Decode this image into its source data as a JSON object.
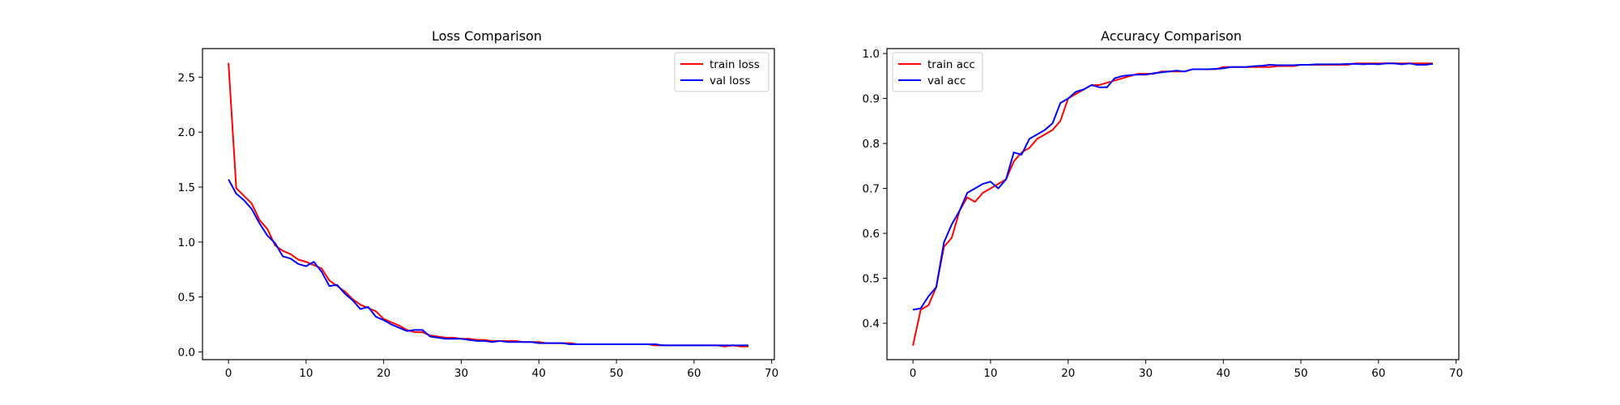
{
  "chart_data": [
    {
      "type": "line",
      "title": "Loss Comparison",
      "xlabel": "",
      "ylabel": "",
      "xlim": [
        -3.35,
        70.35
      ],
      "ylim": [
        -0.07,
        2.76
      ],
      "xticks": [
        0,
        10,
        20,
        30,
        40,
        50,
        60,
        70
      ],
      "yticks": [
        0.0,
        0.5,
        1.0,
        1.5,
        2.0,
        2.5
      ],
      "xtick_labels": [
        "0",
        "10",
        "20",
        "30",
        "40",
        "50",
        "60",
        "70"
      ],
      "ytick_labels": [
        "0.0",
        "0.5",
        "1.0",
        "1.5",
        "2.0",
        "2.5"
      ],
      "legend_position": "upper right",
      "grid": false,
      "x": [
        0,
        1,
        2,
        3,
        4,
        5,
        6,
        7,
        8,
        9,
        10,
        11,
        12,
        13,
        14,
        15,
        16,
        17,
        18,
        19,
        20,
        21,
        22,
        23,
        24,
        25,
        26,
        27,
        28,
        29,
        30,
        31,
        32,
        33,
        34,
        35,
        36,
        37,
        38,
        39,
        40,
        41,
        42,
        43,
        44,
        45,
        46,
        47,
        48,
        49,
        50,
        51,
        52,
        53,
        54,
        55,
        56,
        57,
        58,
        59,
        60,
        61,
        62,
        63,
        64,
        65,
        66,
        67
      ],
      "series": [
        {
          "name": "train loss",
          "color": "#ff0000",
          "values": [
            2.63,
            1.49,
            1.42,
            1.35,
            1.2,
            1.12,
            0.97,
            0.92,
            0.89,
            0.84,
            0.82,
            0.79,
            0.76,
            0.65,
            0.6,
            0.55,
            0.48,
            0.43,
            0.4,
            0.37,
            0.3,
            0.27,
            0.24,
            0.2,
            0.18,
            0.18,
            0.15,
            0.14,
            0.13,
            0.13,
            0.12,
            0.12,
            0.11,
            0.11,
            0.1,
            0.1,
            0.1,
            0.1,
            0.09,
            0.09,
            0.09,
            0.08,
            0.08,
            0.08,
            0.08,
            0.07,
            0.07,
            0.07,
            0.07,
            0.07,
            0.07,
            0.07,
            0.07,
            0.07,
            0.07,
            0.06,
            0.06,
            0.06,
            0.06,
            0.06,
            0.06,
            0.06,
            0.06,
            0.06,
            0.05,
            0.06,
            0.05,
            0.05
          ]
        },
        {
          "name": "val loss",
          "color": "#0000ff",
          "values": [
            1.57,
            1.44,
            1.38,
            1.3,
            1.17,
            1.06,
            0.99,
            0.87,
            0.85,
            0.8,
            0.78,
            0.82,
            0.73,
            0.6,
            0.61,
            0.53,
            0.47,
            0.39,
            0.41,
            0.32,
            0.29,
            0.25,
            0.22,
            0.19,
            0.2,
            0.2,
            0.14,
            0.13,
            0.12,
            0.12,
            0.12,
            0.11,
            0.1,
            0.1,
            0.09,
            0.1,
            0.09,
            0.09,
            0.09,
            0.09,
            0.08,
            0.08,
            0.08,
            0.08,
            0.07,
            0.07,
            0.07,
            0.07,
            0.07,
            0.07,
            0.07,
            0.07,
            0.07,
            0.07,
            0.07,
            0.07,
            0.06,
            0.06,
            0.06,
            0.06,
            0.06,
            0.06,
            0.06,
            0.06,
            0.06,
            0.06,
            0.06,
            0.06
          ]
        }
      ]
    },
    {
      "type": "line",
      "title": "Accuracy Comparison",
      "xlabel": "",
      "ylabel": "",
      "xlim": [
        -3.35,
        70.35
      ],
      "ylim": [
        0.319,
        1.011
      ],
      "xticks": [
        0,
        10,
        20,
        30,
        40,
        50,
        60,
        70
      ],
      "yticks": [
        0.4,
        0.5,
        0.6,
        0.7,
        0.8,
        0.9,
        1.0
      ],
      "xtick_labels": [
        "0",
        "10",
        "20",
        "30",
        "40",
        "50",
        "60",
        "70"
      ],
      "ytick_labels": [
        "0.4",
        "0.5",
        "0.6",
        "0.7",
        "0.8",
        "0.9",
        "1.0"
      ],
      "legend_position": "upper left",
      "grid": false,
      "x": [
        0,
        1,
        2,
        3,
        4,
        5,
        6,
        7,
        8,
        9,
        10,
        11,
        12,
        13,
        14,
        15,
        16,
        17,
        18,
        19,
        20,
        21,
        22,
        23,
        24,
        25,
        26,
        27,
        28,
        29,
        30,
        31,
        32,
        33,
        34,
        35,
        36,
        37,
        38,
        39,
        40,
        41,
        42,
        43,
        44,
        45,
        46,
        47,
        48,
        49,
        50,
        51,
        52,
        53,
        54,
        55,
        56,
        57,
        58,
        59,
        60,
        61,
        62,
        63,
        64,
        65,
        66,
        67
      ],
      "series": [
        {
          "name": "train acc",
          "color": "#ff0000",
          "values": [
            0.35,
            0.43,
            0.44,
            0.48,
            0.57,
            0.59,
            0.65,
            0.68,
            0.67,
            0.69,
            0.7,
            0.71,
            0.72,
            0.76,
            0.78,
            0.79,
            0.81,
            0.82,
            0.83,
            0.85,
            0.9,
            0.91,
            0.92,
            0.93,
            0.93,
            0.935,
            0.94,
            0.945,
            0.95,
            0.955,
            0.955,
            0.955,
            0.96,
            0.96,
            0.96,
            0.96,
            0.965,
            0.965,
            0.965,
            0.965,
            0.97,
            0.97,
            0.97,
            0.97,
            0.97,
            0.97,
            0.97,
            0.972,
            0.972,
            0.972,
            0.975,
            0.975,
            0.975,
            0.975,
            0.975,
            0.975,
            0.975,
            0.978,
            0.978,
            0.978,
            0.978,
            0.978,
            0.978,
            0.978,
            0.978,
            0.978,
            0.978,
            0.978
          ]
        },
        {
          "name": "val acc",
          "color": "#0000ff",
          "values": [
            0.43,
            0.433,
            0.46,
            0.48,
            0.58,
            0.62,
            0.65,
            0.69,
            0.7,
            0.71,
            0.715,
            0.7,
            0.72,
            0.78,
            0.775,
            0.81,
            0.82,
            0.83,
            0.845,
            0.89,
            0.9,
            0.915,
            0.92,
            0.93,
            0.925,
            0.925,
            0.945,
            0.95,
            0.952,
            0.953,
            0.953,
            0.956,
            0.958,
            0.96,
            0.962,
            0.96,
            0.965,
            0.965,
            0.965,
            0.966,
            0.967,
            0.97,
            0.97,
            0.97,
            0.972,
            0.973,
            0.975,
            0.974,
            0.974,
            0.974,
            0.975,
            0.975,
            0.976,
            0.976,
            0.976,
            0.976,
            0.977,
            0.977,
            0.976,
            0.977,
            0.976,
            0.978,
            0.978,
            0.976,
            0.978,
            0.975,
            0.975,
            0.977
          ]
        }
      ]
    }
  ]
}
